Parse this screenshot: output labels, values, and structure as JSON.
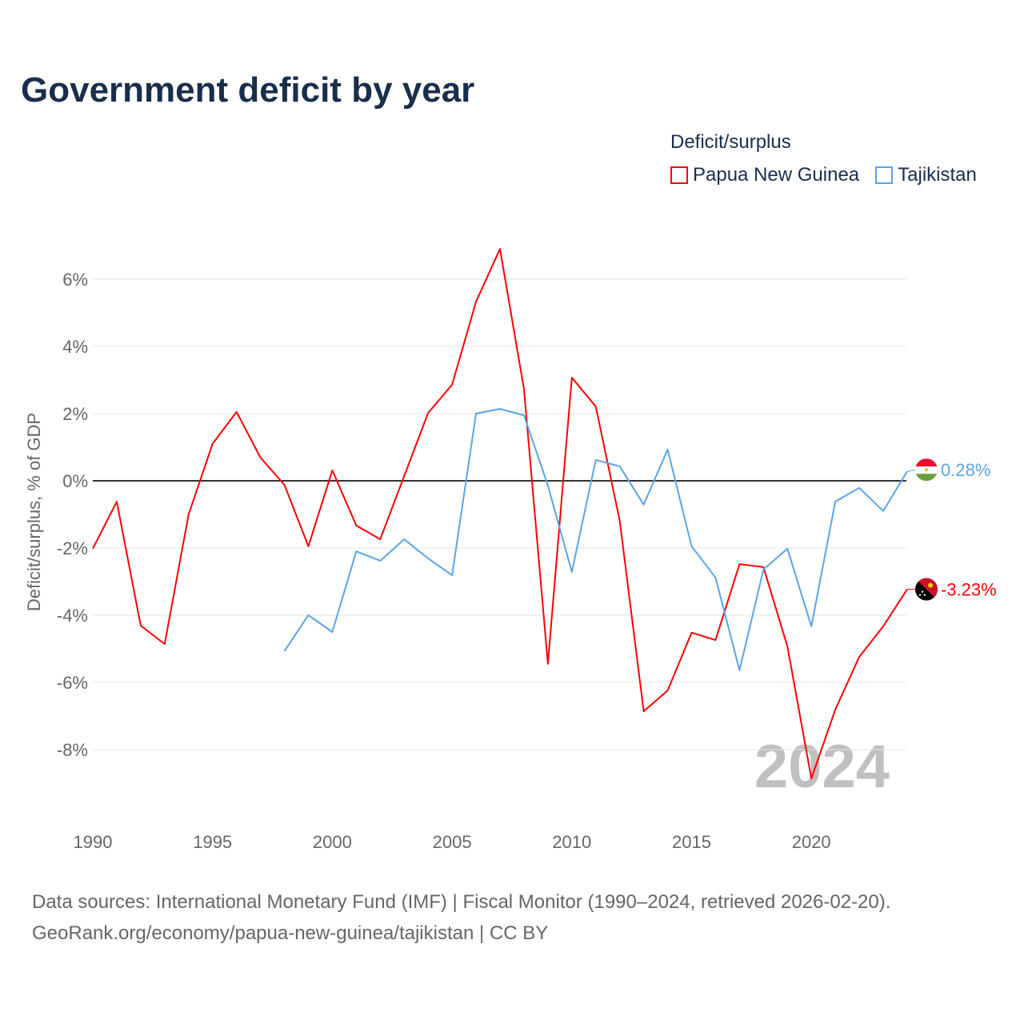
{
  "title": "Government deficit by year",
  "legend": {
    "title": "Deficit/surplus",
    "items": [
      {
        "label": "Papua New Guinea",
        "color": "#ff0000"
      },
      {
        "label": "Tajikistan",
        "color": "#5aa5e8"
      }
    ]
  },
  "footer": {
    "line1": "Data sources: International Monetary Fund (IMF) | Fiscal Monitor (1990–2024, retrieved 2026-02-20).",
    "line2": "GeoRank.org/economy/papua-new-guinea/tajikistan | CC BY"
  },
  "chart_data": {
    "type": "line",
    "title": "Government deficit by year",
    "xlabel": "",
    "ylabel": "Deficit/surplus, % of GDP",
    "xlim": [
      1990,
      2024
    ],
    "ylim": [
      -10,
      7
    ],
    "yticks": [
      6,
      4,
      2,
      0,
      -2,
      -4,
      -6,
      -8
    ],
    "ytick_labels": [
      "6%",
      "4%",
      "2%",
      "0%",
      "-2%",
      "-4%",
      "-6%",
      "-8%"
    ],
    "xticks": [
      1990,
      1995,
      2000,
      2005,
      2010,
      2015,
      2020
    ],
    "xtick_labels": [
      "1990",
      "1995",
      "2000",
      "2005",
      "2010",
      "2015",
      "2020"
    ],
    "grid": true,
    "year_watermark": "2024",
    "series": [
      {
        "name": "Papua New Guinea",
        "color": "#ff0000",
        "end_label": "-3.23%",
        "x": [
          1990,
          1991,
          1992,
          1993,
          1994,
          1995,
          1996,
          1997,
          1998,
          1999,
          2000,
          2001,
          2002,
          2003,
          2004,
          2005,
          2006,
          2007,
          2008,
          2009,
          2010,
          2011,
          2012,
          2013,
          2014,
          2015,
          2016,
          2017,
          2018,
          2019,
          2020,
          2021,
          2022,
          2023,
          2024
        ],
        "values": [
          -2.02,
          -0.62,
          -4.31,
          -4.86,
          -1.0,
          1.1,
          2.05,
          0.69,
          -0.12,
          -1.95,
          0.31,
          -1.33,
          -1.74,
          0.14,
          2.02,
          2.86,
          5.33,
          6.9,
          2.74,
          -5.45,
          3.07,
          2.21,
          -1.19,
          -6.86,
          -6.24,
          -4.52,
          -4.74,
          -2.48,
          -2.57,
          -4.93,
          -8.86,
          -6.81,
          -5.24,
          -4.33,
          -3.23
        ]
      },
      {
        "name": "Tajikistan",
        "color": "#5aa5e8",
        "end_label": "0.28%",
        "x": [
          1998,
          1999,
          2000,
          2001,
          2002,
          2003,
          2004,
          2005,
          2006,
          2007,
          2008,
          2009,
          2010,
          2011,
          2012,
          2013,
          2014,
          2015,
          2016,
          2017,
          2018,
          2019,
          2020,
          2021,
          2022,
          2023,
          2024
        ],
        "values": [
          -5.07,
          -4.0,
          -4.5,
          -2.1,
          -2.38,
          -1.74,
          -2.31,
          -2.81,
          2.0,
          2.14,
          1.95,
          -0.14,
          -2.71,
          0.62,
          0.43,
          -0.71,
          0.93,
          -1.95,
          -2.88,
          -5.64,
          -2.64,
          -2.02,
          -4.33,
          -0.62,
          -0.21,
          -0.9,
          0.28
        ]
      }
    ]
  }
}
